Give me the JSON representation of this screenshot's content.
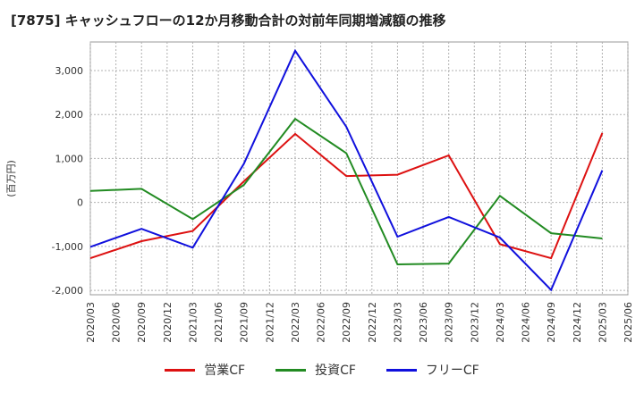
{
  "chart_data": {
    "type": "line",
    "title": "[7875]  キャッシュフローの12か月移動合計の対前年同期増減額の推移",
    "ylabel": "(百万円)",
    "xlabel": "",
    "ylim": [
      -2100,
      3650
    ],
    "yticks": [
      -2000,
      -1000,
      0,
      1000,
      2000,
      3000
    ],
    "ytick_labels": [
      "-2,000",
      "-1,000",
      "0",
      "1,000",
      "2,000",
      "3,000"
    ],
    "x_tick_labels": [
      "2020/03",
      "2020/06",
      "2020/09",
      "2020/12",
      "2021/03",
      "2021/06",
      "2021/09",
      "2021/12",
      "2022/03",
      "2022/06",
      "2022/09",
      "2022/12",
      "2023/03",
      "2023/06",
      "2023/09",
      "2023/12",
      "2024/03",
      "2024/06",
      "2024/09",
      "2024/12",
      "2025/03",
      "2025/06"
    ],
    "grid": true,
    "legend_position": "bottom",
    "series": [
      {
        "name": "営業CF",
        "color": "#dd1111",
        "points": [
          [
            "2020/03",
            -1270
          ],
          [
            "2020/09",
            -880
          ],
          [
            "2021/03",
            -650
          ],
          [
            "2021/09",
            480
          ],
          [
            "2022/03",
            1560
          ],
          [
            "2022/09",
            600
          ],
          [
            "2023/03",
            630
          ],
          [
            "2023/09",
            1070
          ],
          [
            "2024/03",
            -950
          ],
          [
            "2024/09",
            -1270
          ],
          [
            "2025/03",
            1580
          ]
        ]
      },
      {
        "name": "投資CF",
        "color": "#228b22",
        "points": [
          [
            "2020/03",
            260
          ],
          [
            "2020/09",
            310
          ],
          [
            "2021/03",
            -380
          ],
          [
            "2021/09",
            400
          ],
          [
            "2022/03",
            1900
          ],
          [
            "2022/09",
            1120
          ],
          [
            "2023/03",
            -1410
          ],
          [
            "2023/09",
            -1390
          ],
          [
            "2024/03",
            150
          ],
          [
            "2024/09",
            -700
          ],
          [
            "2025/03",
            -820
          ]
        ]
      },
      {
        "name": "フリーCF",
        "color": "#1010dd",
        "points": [
          [
            "2020/03",
            -1010
          ],
          [
            "2020/09",
            -600
          ],
          [
            "2021/03",
            -1030
          ],
          [
            "2021/09",
            880
          ],
          [
            "2022/03",
            3450
          ],
          [
            "2022/09",
            1720
          ],
          [
            "2023/03",
            -780
          ],
          [
            "2023/09",
            -330
          ],
          [
            "2024/03",
            -800
          ],
          [
            "2024/09",
            -1990
          ],
          [
            "2025/03",
            730
          ]
        ]
      }
    ]
  }
}
